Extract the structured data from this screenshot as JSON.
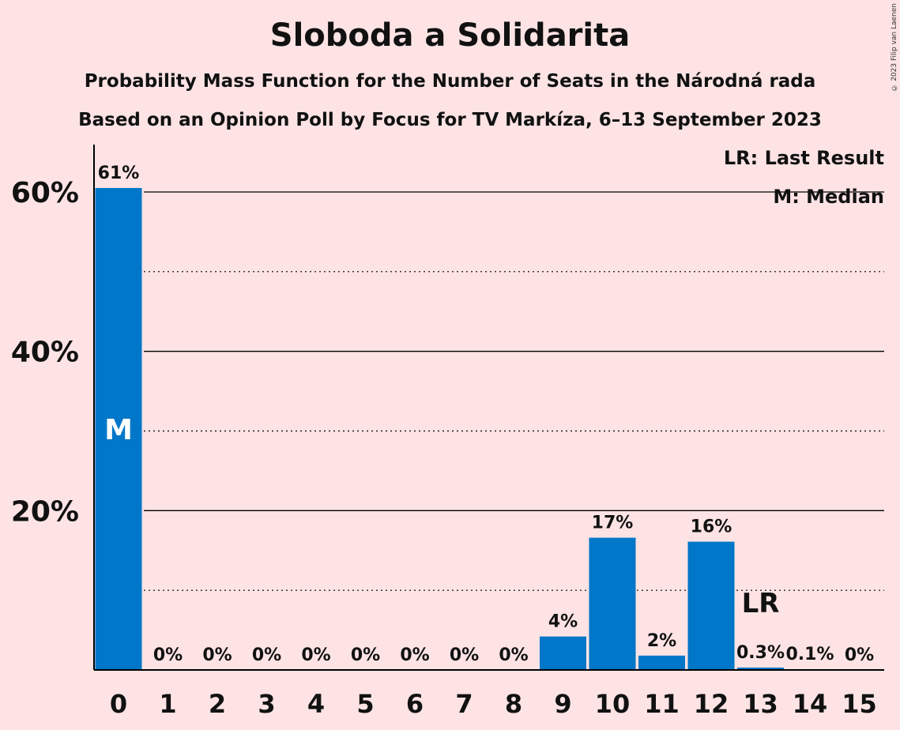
{
  "chart_data": {
    "type": "bar",
    "title": "Sloboda a Solidarita",
    "subtitle_1": "Probability Mass Function for the Number of Seats in the Národná rada",
    "subtitle_2": "Based on an Opinion Poll by Focus for TV Markíza, 6–13 September 2023",
    "categories": [
      "0",
      "1",
      "2",
      "3",
      "4",
      "5",
      "6",
      "7",
      "8",
      "9",
      "10",
      "11",
      "12",
      "13",
      "14",
      "15"
    ],
    "values": [
      60.5,
      0,
      0,
      0,
      0,
      0,
      0,
      0,
      0,
      4.2,
      16.6,
      1.8,
      16.1,
      0.3,
      0.1,
      0
    ],
    "data_labels": [
      "61%",
      "0%",
      "0%",
      "0%",
      "0%",
      "0%",
      "0%",
      "0%",
      "0%",
      "4%",
      "17%",
      "2%",
      "16%",
      "0.3%",
      "0.1%",
      "0%"
    ],
    "y_ticks": [
      {
        "value": 20,
        "label": "20%"
      },
      {
        "value": 40,
        "label": "40%"
      },
      {
        "value": 60,
        "label": "60%"
      }
    ],
    "ylim": [
      0,
      66
    ],
    "grid": "solid at 20/40/60, dotted at 10/30/50",
    "bar_color": "#0077c8",
    "median_index": 0,
    "median_marker": "M",
    "last_result_index": 13,
    "last_result_marker": "LR",
    "legend": [
      "LR: Last Result",
      "M: Median"
    ],
    "legend_position": "top-right"
  },
  "copyright": "© 2023 Filip van Laenen"
}
